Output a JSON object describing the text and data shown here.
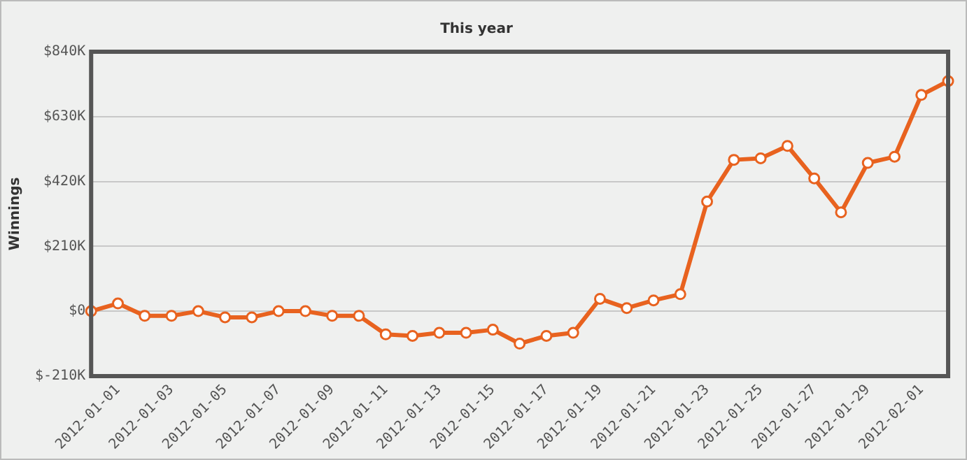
{
  "chart_data": {
    "type": "line",
    "title": "This year",
    "ylabel": "Winnings",
    "categories": [
      null,
      "2012-01-01",
      null,
      "2012-01-03",
      null,
      "2012-01-05",
      null,
      "2012-01-07",
      null,
      "2012-01-09",
      null,
      "2012-01-11",
      null,
      "2012-01-13",
      null,
      "2012-01-15",
      null,
      "2012-01-17",
      null,
      "2012-01-19",
      null,
      "2012-01-21",
      null,
      "2012-01-23",
      null,
      "2012-01-25",
      null,
      "2012-01-27",
      null,
      "2012-01-29",
      null,
      "2012-02-01",
      null
    ],
    "series": [
      {
        "color": "#e8621f",
        "values": [
          0,
          25000,
          -15000,
          -15000,
          0,
          -20000,
          -20000,
          0,
          0,
          -15000,
          -15000,
          -75000,
          -80000,
          -70000,
          -70000,
          -60000,
          -105000,
          -80000,
          -70000,
          40000,
          10000,
          35000,
          55000,
          355000,
          490000,
          495000,
          535000,
          430000,
          320000,
          480000,
          500000,
          700000,
          745000
        ]
      }
    ],
    "ylim": [
      -210000,
      840000
    ],
    "yticks": [
      {
        "value": -210000,
        "label": "$-210K"
      },
      {
        "value": 0,
        "label": "$0"
      },
      {
        "value": 210000,
        "label": "$210K"
      },
      {
        "value": 420000,
        "label": "$420K"
      },
      {
        "value": 630000,
        "label": "$630K"
      },
      {
        "value": 840000,
        "label": "$840K"
      }
    ],
    "grid": "y",
    "legend": false,
    "marker": "circle",
    "line_style": "solid"
  }
}
